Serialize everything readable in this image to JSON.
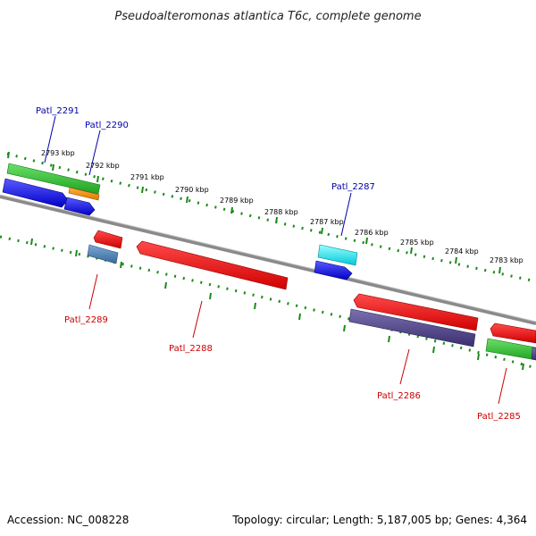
{
  "title": "Pseudoalteromonas atlantica T6c, complete genome",
  "footer": {
    "accession": "Accession: NC_008228",
    "summary": "Topology: circular; Length: 5,187,005 bp; Genes: 4,364"
  },
  "ticks": [
    "2793 kbp",
    "2792 kbp",
    "2791 kbp",
    "2790 kbp",
    "2789 kbp",
    "2788 kbp",
    "2787 kbp",
    "2786 kbp",
    "2785 kbp",
    "2784 kbp",
    "2783 kbp"
  ],
  "labels": {
    "forward": [
      "Patl_2291",
      "Patl_2290",
      "Patl_2287"
    ],
    "reverse": [
      "Patl_2289",
      "Patl_2288",
      "Patl_2286",
      "Patl_2285"
    ]
  },
  "colors": {
    "forward_label": "#0000aa",
    "reverse_label": "#cc0000",
    "tick": "#1a8a1a",
    "backbone": "#7a7a7a"
  }
}
